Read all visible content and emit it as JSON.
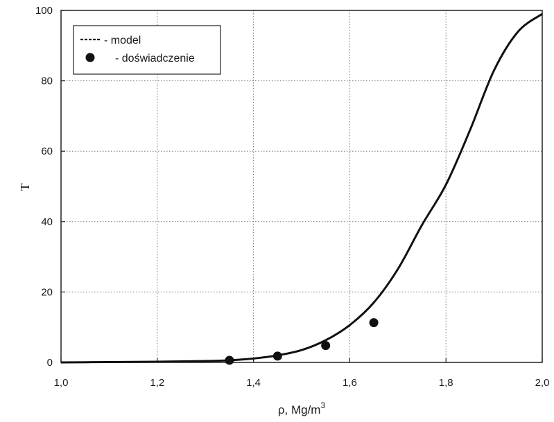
{
  "chart_data": {
    "type": "line",
    "xlabel": "ρ, Mg/m",
    "xlabel_superscript": "3",
    "ylabel": "T",
    "xlim": [
      1.0,
      2.0
    ],
    "ylim": [
      0,
      100
    ],
    "x_ticks": [
      "1,0",
      "1,2",
      "1,4",
      "1,6",
      "1,8",
      "2,0"
    ],
    "y_ticks": [
      "0",
      "20",
      "40",
      "60",
      "80",
      "100"
    ],
    "grid": true,
    "legend_position": "top-left",
    "series": [
      {
        "name": "- model",
        "style": "solid line",
        "color": "#111111",
        "x": [
          1.0,
          1.1,
          1.2,
          1.3,
          1.35,
          1.4,
          1.45,
          1.5,
          1.55,
          1.6,
          1.65,
          1.7,
          1.75,
          1.8,
          1.85,
          1.9,
          1.95,
          2.0
        ],
        "y": [
          0.0,
          0.1,
          0.2,
          0.4,
          0.6,
          1.1,
          2.0,
          3.5,
          6.3,
          10.6,
          17.0,
          26.5,
          39.0,
          50.5,
          66.0,
          83.0,
          94.0,
          99.0
        ]
      },
      {
        "name": "- doświadczenie",
        "style": "markers",
        "color": "#111111",
        "x": [
          1.35,
          1.45,
          1.55,
          1.65
        ],
        "y": [
          0.6,
          1.8,
          4.8,
          11.3
        ]
      }
    ]
  }
}
